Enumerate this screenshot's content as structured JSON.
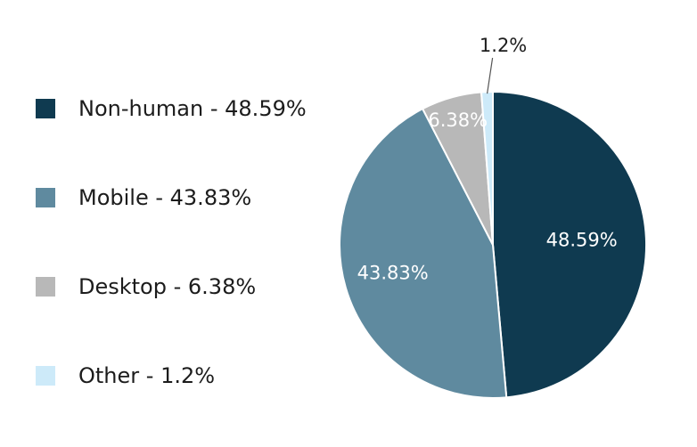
{
  "chart_data": {
    "type": "pie",
    "title": "",
    "slices": [
      {
        "name": "Non-human",
        "value": 48.59,
        "legend_label": "Non-human - 48.59%",
        "data_label": "48.59%",
        "color": "#0f3a50",
        "label_color": "#ffffff"
      },
      {
        "name": "Mobile",
        "value": 43.83,
        "legend_label": "Mobile - 43.83%",
        "data_label": "43.83%",
        "color": "#5f8a9f",
        "label_color": "#ffffff"
      },
      {
        "name": "Desktop",
        "value": 6.38,
        "legend_label": "Desktop - 6.38%",
        "data_label": "6.38%",
        "color": "#b8b8b8",
        "label_color": "#ffffff"
      },
      {
        "name": "Other",
        "value": 1.2,
        "legend_label": "Other - 1.2%",
        "data_label": "1.2%",
        "color": "#cdeaf9",
        "label_color": "#1c1c1c"
      }
    ],
    "legend_position": "left",
    "start_angle": "12 o'clock",
    "direction": "clockwise"
  }
}
